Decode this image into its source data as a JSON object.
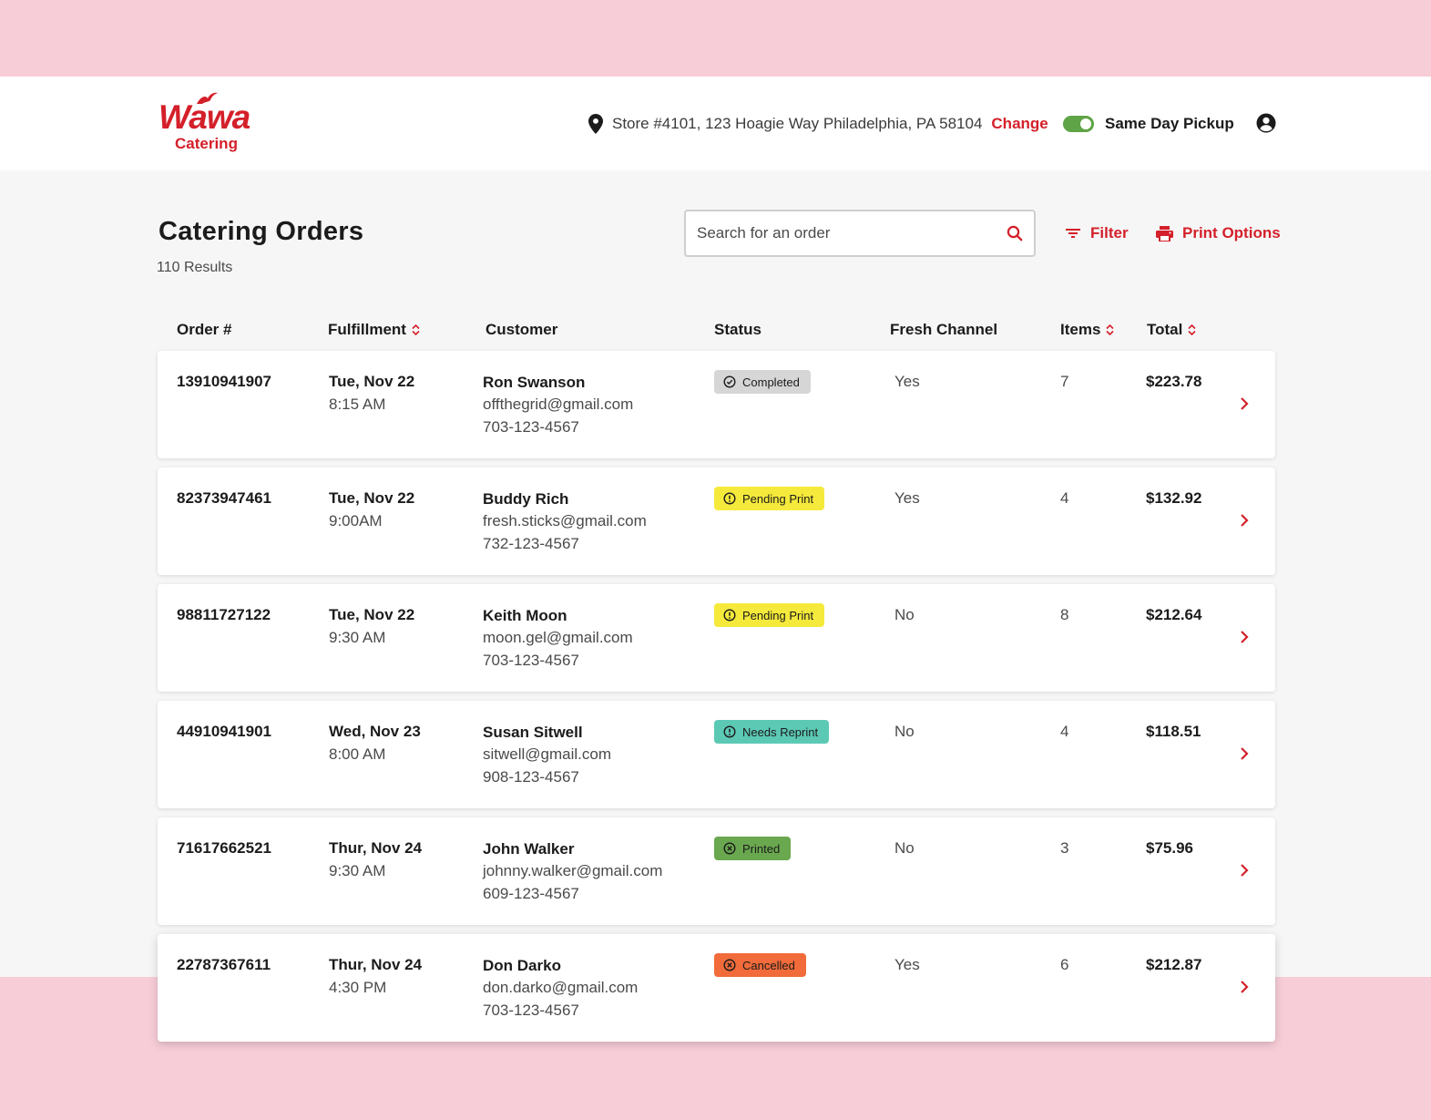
{
  "brand": {
    "wordmark": "Wawa",
    "subtitle": "Catering",
    "color": "#d4202a"
  },
  "header": {
    "store_address": "Store #4101, 123 Hoagie Way Philadelphia, PA 58104",
    "change_label": "Change",
    "pickup_toggle_label": "Same Day Pickup",
    "pickup_toggle_on": true,
    "icons": {
      "location": "location-pin-icon",
      "account": "account-circle-icon"
    }
  },
  "page": {
    "title": "Catering Orders",
    "result_count": "110 Results",
    "search_placeholder": "Search for an order",
    "filter_label": "Filter",
    "print_label": "Print Options"
  },
  "table": {
    "columns": {
      "order": "Order #",
      "fulfillment": "Fulfillment",
      "customer": "Customer",
      "status": "Status",
      "fresh": "Fresh Channel",
      "items": "Items",
      "total": "Total"
    },
    "rows": [
      {
        "order": "13910941907",
        "date": "Tue, Nov 22",
        "time": "8:15 AM",
        "name": "Ron Swanson",
        "email": "offthegrid@gmail.com",
        "phone": "703-123-4567",
        "status": "Completed",
        "status_kind": "completed",
        "fresh": "Yes",
        "items": "7",
        "total": "$223.78"
      },
      {
        "order": "82373947461",
        "date": "Tue, Nov 22",
        "time": "9:00AM",
        "name": "Buddy Rich",
        "email": "fresh.sticks@gmail.com",
        "phone": "732-123-4567",
        "status": "Pending Print",
        "status_kind": "pending",
        "fresh": "Yes",
        "items": "4",
        "total": "$132.92"
      },
      {
        "order": "98811727122",
        "date": "Tue, Nov 22",
        "time": "9:30 AM",
        "name": "Keith Moon",
        "email": "moon.gel@gmail.com",
        "phone": "703-123-4567",
        "status": "Pending Print",
        "status_kind": "pending",
        "fresh": "No",
        "items": "8",
        "total": "$212.64"
      },
      {
        "order": "44910941901",
        "date": "Wed, Nov 23",
        "time": "8:00 AM",
        "name": "Susan Sitwell",
        "email": "sitwell@gmail.com",
        "phone": "908-123-4567",
        "status": "Needs Reprint",
        "status_kind": "reprint",
        "fresh": "No",
        "items": "4",
        "total": "$118.51"
      },
      {
        "order": "71617662521",
        "date": "Thur, Nov 24",
        "time": "9:30 AM",
        "name": "John Walker",
        "email": "johnny.walker@gmail.com",
        "phone": "609-123-4567",
        "status": "Printed",
        "status_kind": "printed",
        "fresh": "No",
        "items": "3",
        "total": "$75.96"
      },
      {
        "order": "22787367611",
        "date": "Thur, Nov 24",
        "time": "4:30 PM",
        "name": "Don Darko",
        "email": "don.darko@gmail.com",
        "phone": "703-123-4567",
        "status": "Cancelled",
        "status_kind": "cancelled",
        "fresh": "Yes",
        "items": "6",
        "total": "$212.87"
      }
    ]
  },
  "status_colors": {
    "completed": "#d6d6d6",
    "pending": "#f5ea3b",
    "reprint": "#5cc9b5",
    "printed": "#6aa84f",
    "cancelled": "#f26b3a"
  }
}
